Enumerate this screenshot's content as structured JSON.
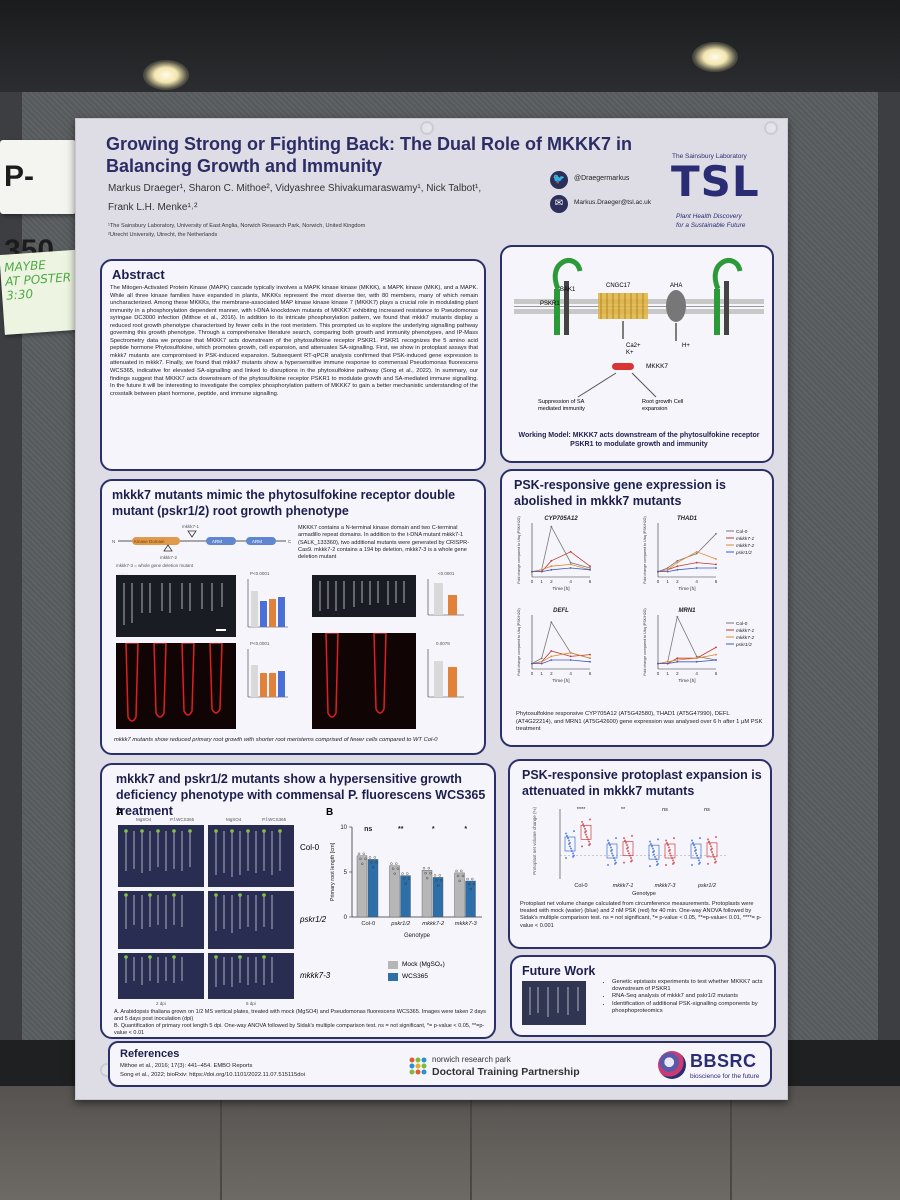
{
  "booth": {
    "number": "P-350",
    "sticky_note": [
      "MAYBE",
      "AT POSTER",
      "3:30"
    ]
  },
  "poster": {
    "title": "Growing Strong or Fighting Back: The Dual Role of MKKK7 in Balancing Growth and Immunity",
    "authors_line1": "Markus Draeger¹, Sharon C. Mithoe², Vidyashree Shivakumaraswamy¹, Nick Talbot¹,",
    "authors_line2": "Frank L.H. Menke¹˒²",
    "affiliation1": "¹The Sainsbury Laboratory, University of East Anglia, Norwich Research Park, Norwich, United Kingdom",
    "affiliation2": "²Utrecht University, Utrecht, the Netherlands",
    "twitter": "@Draegermarkus",
    "email": "Markus.Draeger@tsl.ac.uk",
    "institute": {
      "name": "The Sainsbury Laboratory",
      "logo": "TSL",
      "tagline1": "Plant Health Discovery",
      "tagline2": "for a Sustainable Future"
    }
  },
  "abstract": {
    "title": "Abstract",
    "text": "The Mitogen-Activated Protein Kinase (MAPK) cascade typically involves a MAPK kinase kinase (MKKK), a MAPK kinase (MKK), and a MAPK. While all three kinase families have expanded in plants, MKKKs represent the most diverse tier, with 80 members, many of which remain uncharacterized. Among these MKKKs, the membrane-associated MAP kinase kinase kinase 7 (MKKK7) plays a crucial role in modulating plant immunity in a phosphorylation dependent manner, with t-DNA knockdown mutants of MKKK7 exhibiting increased resistance to Pseudomonas syringae DC3000 infection (Mithoe et al., 2016). In addition to its intricate phosphorylation pattern, we found that mkkk7 mutants display a reduced root growth phenotype characterised by fewer cells in the root meristem. This prompted us to explore the underlying signalling pathway governing this growth phenotype. Through a comprehensive literature search, comparing both growth and immunity phenotypes, and IP-Mass Spectrometry data we propose that MKKK7 acts downstream of the phytosulfokine receptor PSKR1. PSKR1 recognizes the 5 amino acid peptide hormone Phytosulfokine, which promotes growth, cell expansion, and attenuates SA-signalling. First, we show in protoplast assays that mkkk7 mutants are compromised in PSK-induced expansion. Subsequent RT-qPCR analysis confirmed that PSK-induced gene expression is attenuated in mkkk7. Finally, we found that mkkk7 mutants show a hypersensitive immune response to commensal Pseudomonas fluorescens WCS365, indicative for elevated SA-signalling and linked to disruptions in the phytosulfokine pathway (Song et al., 2022). In summary, our findings suggest that MKKK7 acts downstream of the phytosulfokine receptor PSKR1 to modulate growth and SA-mediated immune signalling. In the future it will be interesting to investigate the complex phosphorylation pattern of MKKK7 to gain a better mechanistic understanding of the crosstalk between plant hormone, peptide, and immune signalling."
  },
  "model": {
    "labels": {
      "pskr1": "PSKR1",
      "bak1": "BAK1",
      "cngc17": "CNGC17",
      "aha": "AHA",
      "ions": "Ca2+\nK+",
      "proton": "H+",
      "mkkk7": "MKKK7",
      "sa": "Suppression of SA mediated immunity",
      "growth": "Root growth Cell expansion"
    },
    "caption": "Working Model: MKKK7 acts downstream of the phytosulfokine receptor PSKR1 to modulate growth and immunity"
  },
  "root": {
    "title": "mkkk7 mutants mimic the phytosulfokine receptor double mutant (pskr1/2) root growth phenotype",
    "description": "MKKK7 contains a N-terminal kinase domain and two C-terminal armadillo repeat domains. In addition to the t-DNA mutant mkkk7-1 (SALK_133360), two additional mutants were generated by CRISPR-Cas9. mkkk7-2 contains a 194 bp deletion, mkkk7-3 is a whole gene deletion mutant",
    "gene_labels": {
      "n": "N",
      "c": "C",
      "kinase": "Kinase Domain",
      "arm1": "ARM",
      "arm2": "ARM",
      "m1": "mkkk7-1",
      "m2": "mkkk7-2",
      "m3": "mkkk7-3 = whole gene deletion mutant"
    },
    "genotypes": [
      "Col-0",
      "pskr1/2",
      "mkkk7-1",
      "mkkk7-2",
      "mkkk7-3"
    ],
    "pvals": [
      "P<0.0001",
      "<0.0001",
      "P<0.0001",
      "0.0078"
    ],
    "caption": "mkkk7 mutants show reduced primary root growth with shorter root meristems comprised of fewer cells compared to WT Col-0",
    "colors": {
      "col0": "#d9d9d9",
      "pskr": "#4a6fd6",
      "mkkk": "#e0823a"
    }
  },
  "pseudo": {
    "title": "mkkk7 and pskr1/2 mutants show a hypersensitive growth deficiency phenotype with commensal P. fluorescens WCS365 treatment",
    "panel_a": "A",
    "panel_b": "B",
    "row_labels": [
      "Col-0",
      "pskr1/2",
      "mkkk7-3"
    ],
    "col_labels": [
      "MgSO4",
      "P.f.WCS365",
      "MgSO4",
      "P.f.WCS365"
    ],
    "dpi_labels": [
      "2 dpi",
      "5 dpi"
    ],
    "ylabel": "Primary root length [cm]",
    "xlabel": "Genotype",
    "sig": [
      "ns",
      "**",
      "*",
      "*"
    ],
    "legend": [
      "Mock (MgSO₄)",
      "WCS365"
    ],
    "caption_a": "A. Arabidopsis thaliana grown on 1/2 MS vertical plates, treated with mock (MgSO4) and Pseudomonas fluorescens WCS365. Images were taken 2 days and 5 days post inoculation (dpi)",
    "caption_b": "B. Quantification of primary root length 5 dpi. One-way ANOVA followed by Sidak's multiple comparison test. ns = not significant, *= p-value < 0.05, **=p-value < 0.01"
  },
  "psk_gene": {
    "title": "PSK-responsive gene expression is abolished in mkkk7 mutants",
    "caption": "Phytosulfokine responsive CYP705A12 (AT5G42580), THAD1 (AT5G47990), DEFL (AT4G22214), and MRN1 (AT5G42600) gene expression was analysed over 6 h after 1 µM PSK treatment",
    "xlabel": "Time [h]",
    "ylabel": "Fold change compared to Ubq (PSK/H2O)",
    "series_names": [
      "Col-0",
      "mkkk7-1",
      "mkkk7-2",
      "pskr1/2"
    ],
    "colors": [
      "#777777",
      "#c0392b",
      "#e08a2e",
      "#3b5bc4"
    ]
  },
  "protoplast": {
    "title": "PSK-responsive protoplast expansion is attenuated in mkkk7 mutants",
    "ylabel": "Protoplast net volume change (%)",
    "xlabel": "Genotype",
    "genotypes": [
      "Col-0",
      "mkkk7-1",
      "mkkk7-3",
      "pskr1/2"
    ],
    "sig": [
      "****",
      "**",
      "ns",
      "ns"
    ],
    "caption": "Protoplast net volume change calculated from circumference measurements. Protoplasts were treated with mock (water) (blue) and 2 nM PSK (red) for 40 min.  One-way ANOVA followed by Sidak's multiple comparison test. ns = not significant, *= p-value < 0.05, **=p-value< 0.01, ****= p-value < 0.001",
    "colors": {
      "mock": "#3a6fd8",
      "psk": "#d23b3b"
    }
  },
  "future": {
    "title": "Future Work",
    "items": [
      "Genetic epistasis experiments to test whether MKKK7 acts downstream of PSKR1",
      "RNA-Seq analysis of mkkk7 and pskr1/2 mutants",
      "Identification of additional PSK-signalling components by phosphoproteomics"
    ]
  },
  "references": {
    "title": "References",
    "items": [
      "Mithoe et al., 2016; 17(3): 441–454. EMBO Reports",
      "Song et al., 2022; bioRxiv: https://doi.org/10.1101/2022.11.07.515115doi"
    ]
  },
  "sponsors": {
    "nrp_line1": "norwich research park",
    "nrp_line2": "Doctoral Training Partnership",
    "bbsrc": "BBSRC",
    "bbsrc_tagline": "bioscience for the future"
  },
  "chart_data": [
    {
      "type": "bar",
      "title": "",
      "xlabel": "Genotype",
      "ylabel": "Primary root length [cm]",
      "categories": [
        "Col-0",
        "pskr1/2",
        "mkkk7-2",
        "mkkk7-3"
      ],
      "series": [
        {
          "name": "Mock (MgSO₄)",
          "values": [
            6.8,
            5.7,
            5.2,
            4.9
          ]
        },
        {
          "name": "WCS365",
          "values": [
            6.4,
            4.6,
            4.4,
            4.0
          ]
        }
      ],
      "ylim": [
        0,
        10
      ]
    },
    {
      "type": "line",
      "title": "CYP705A12",
      "x": [
        0,
        1,
        2,
        4,
        6
      ],
      "series": [
        {
          "name": "Col-0",
          "values": [
            0.3,
            0.4,
            2.8,
            0.8,
            0.5
          ]
        },
        {
          "name": "mkkk7-1",
          "values": [
            0.3,
            0.3,
            0.9,
            1.4,
            0.6
          ]
        },
        {
          "name": "mkkk7-2",
          "values": [
            0.3,
            0.4,
            0.6,
            0.7,
            0.4
          ]
        },
        {
          "name": "pskr1/2",
          "values": [
            0.3,
            0.3,
            0.4,
            0.5,
            0.4
          ]
        }
      ]
    },
    {
      "type": "line",
      "title": "THAD1",
      "x": [
        0,
        1,
        2,
        4,
        6
      ],
      "series": [
        {
          "name": "Col-0",
          "values": [
            0.3,
            0.5,
            0.9,
            1.3,
            2.4
          ]
        },
        {
          "name": "mkkk7-1",
          "values": [
            0.3,
            0.4,
            0.6,
            0.8,
            0.7
          ]
        },
        {
          "name": "mkkk7-2",
          "values": [
            0.3,
            0.4,
            0.8,
            1.4,
            1.0
          ]
        },
        {
          "name": "pskr1/2",
          "values": [
            0.3,
            0.3,
            0.4,
            0.5,
            0.5
          ]
        }
      ]
    },
    {
      "type": "line",
      "title": "DEFL",
      "x": [
        0,
        1,
        2,
        4,
        6
      ],
      "series": [
        {
          "name": "Col-0",
          "values": [
            0.3,
            0.6,
            2.6,
            0.9,
            0.6
          ]
        },
        {
          "name": "mkkk7-1",
          "values": [
            0.3,
            0.4,
            1.0,
            0.7,
            0.8
          ]
        },
        {
          "name": "mkkk7-2",
          "values": [
            0.3,
            0.4,
            0.7,
            0.9,
            0.6
          ]
        },
        {
          "name": "pskr1/2",
          "values": [
            0.3,
            0.3,
            0.5,
            0.5,
            0.4
          ]
        }
      ]
    },
    {
      "type": "line",
      "title": "MRN1",
      "x": [
        0,
        1,
        2,
        4,
        6
      ],
      "series": [
        {
          "name": "Col-0",
          "values": [
            0.3,
            0.4,
            2.9,
            0.7,
            0.5
          ]
        },
        {
          "name": "mkkk7-1",
          "values": [
            0.3,
            0.3,
            0.6,
            0.6,
            1.2
          ]
        },
        {
          "name": "mkkk7-2",
          "values": [
            0.3,
            0.4,
            0.5,
            0.6,
            0.8
          ]
        },
        {
          "name": "pskr1/2",
          "values": [
            0.3,
            0.3,
            0.4,
            0.4,
            0.5
          ]
        }
      ]
    }
  ]
}
